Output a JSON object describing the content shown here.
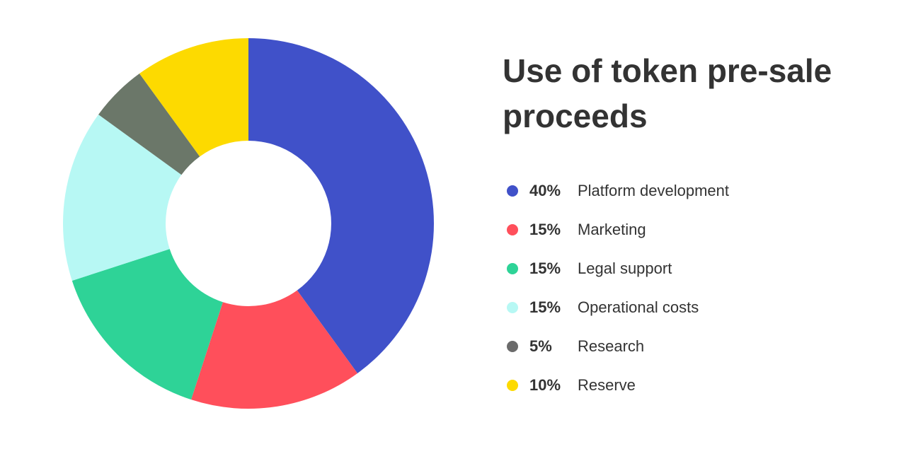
{
  "title": "Use of token pre-sale proceeds",
  "chart_data": {
    "type": "pie",
    "donut": true,
    "title": "Use of token pre-sale proceeds",
    "legend_position": "right",
    "slices": [
      {
        "label": "Platform development",
        "value": 40,
        "display": "40%",
        "color": "#4051C9",
        "legend_color": "#4051C9"
      },
      {
        "label": "Marketing",
        "value": 15,
        "display": "15%",
        "color": "#FF4F5B",
        "legend_color": "#FF4F5B"
      },
      {
        "label": "Legal support",
        "value": 15,
        "display": "15%",
        "color": "#2ED397",
        "legend_color": "#2ED397"
      },
      {
        "label": "Operational costs",
        "value": 15,
        "display": "15%",
        "color": "#B7F8F4",
        "legend_color": "#B7F8F4"
      },
      {
        "label": "Research",
        "value": 5,
        "display": "5%",
        "color": "#6B7769",
        "legend_color": "#6B6B6B"
      },
      {
        "label": "Reserve",
        "value": 10,
        "display": "10%",
        "color": "#FDDA00",
        "legend_color": "#FDDA00"
      }
    ]
  }
}
